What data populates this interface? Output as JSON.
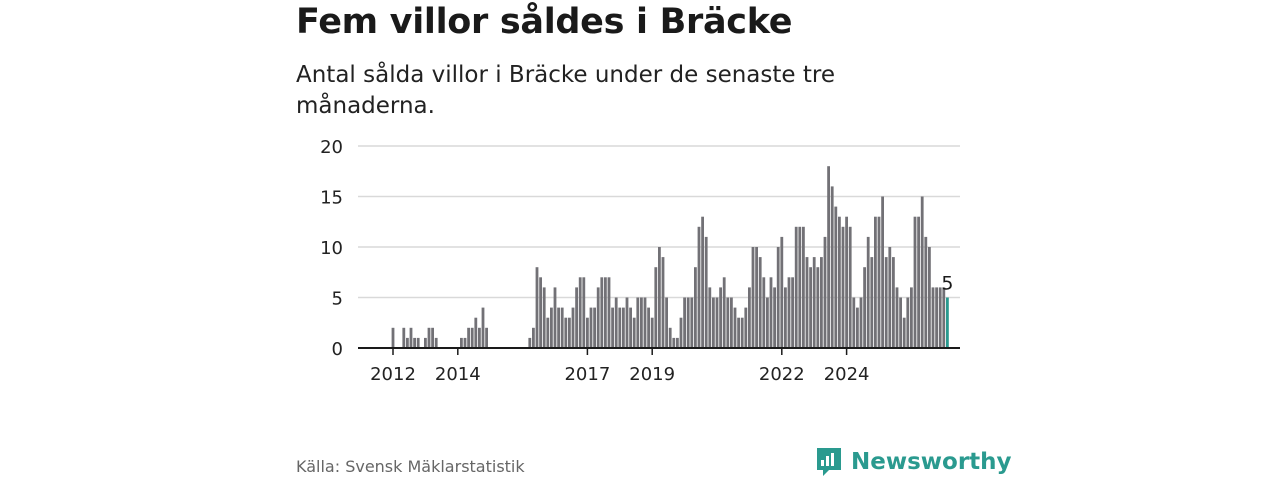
{
  "header": {
    "title": "Fem villor såldes i Bräcke",
    "subtitle": "Antal sålda villor i Bräcke under de senaste tre månaderna."
  },
  "footer": {
    "source": "Källa: Svensk Mäklarstatistik",
    "brand": "Newsworthy"
  },
  "colors": {
    "bar": "#727176",
    "highlight": "#2a9a8f",
    "grid": "#d9d9d9",
    "brand": "#2a9a8f"
  },
  "chart_data": {
    "type": "bar",
    "y_ticks": [
      0,
      5,
      10,
      15,
      20
    ],
    "ylim": [
      0,
      20
    ],
    "x_ticks": [
      {
        "label": "2012",
        "index": 6
      },
      {
        "label": "2014",
        "index": 24
      },
      {
        "label": "2017",
        "index": 60
      },
      {
        "label": "2019",
        "index": 78
      },
      {
        "label": "2022",
        "index": 114
      },
      {
        "label": "2024",
        "index": 132
      }
    ],
    "values": [
      0,
      0,
      0,
      0,
      0,
      0,
      2,
      0,
      0,
      2,
      1,
      2,
      1,
      1,
      0,
      1,
      2,
      2,
      1,
      0,
      0,
      0,
      0,
      0,
      0,
      1,
      1,
      2,
      2,
      3,
      2,
      4,
      2,
      0,
      0,
      0,
      0,
      0,
      0,
      0,
      0,
      0,
      0,
      0,
      1,
      2,
      8,
      7,
      6,
      3,
      4,
      6,
      4,
      4,
      3,
      3,
      4,
      6,
      7,
      7,
      3,
      4,
      4,
      6,
      7,
      7,
      7,
      4,
      5,
      4,
      4,
      5,
      4,
      3,
      5,
      5,
      5,
      4,
      3,
      8,
      10,
      9,
      5,
      2,
      1,
      1,
      3,
      5,
      5,
      5,
      8,
      12,
      13,
      11,
      6,
      5,
      5,
      6,
      7,
      5,
      5,
      4,
      3,
      3,
      4,
      6,
      10,
      10,
      9,
      7,
      5,
      7,
      6,
      10,
      11,
      6,
      7,
      7,
      12,
      12,
      12,
      9,
      8,
      9,
      8,
      9,
      11,
      18,
      16,
      14,
      13,
      12,
      13,
      12,
      5,
      4,
      5,
      8,
      11,
      9,
      13,
      13,
      15,
      9,
      10,
      9,
      6,
      5,
      3,
      5,
      6,
      13,
      13,
      15,
      11,
      10,
      6,
      6,
      6,
      6,
      5
    ],
    "highlight_last": true,
    "last_label": "5"
  }
}
